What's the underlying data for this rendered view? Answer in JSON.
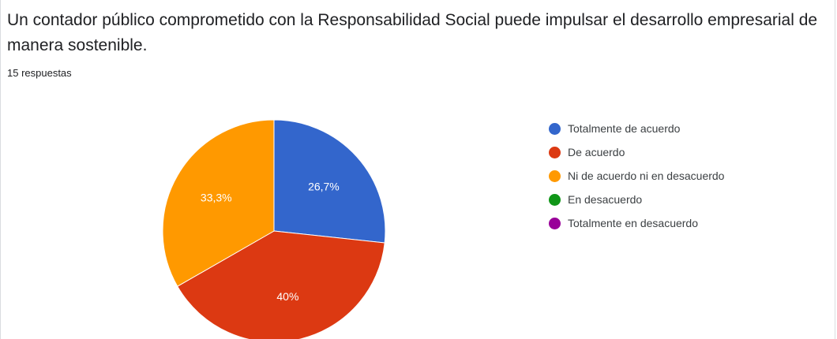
{
  "question": {
    "title": "Un contador público comprometido con la Responsabilidad Social puede impulsar el desarrollo empresarial de manera sostenible.",
    "response_count": "15 respuestas"
  },
  "chart_data": {
    "type": "pie",
    "categories": [
      "Totalmente de acuerdo",
      "De acuerdo",
      "Ni de acuerdo ni en desacuerdo",
      "En desacuerdo",
      "Totalmente en desacuerdo"
    ],
    "values": [
      26.7,
      40,
      33.3,
      0,
      0
    ],
    "value_labels": [
      "26,7%",
      "40%",
      "33,3%",
      "",
      ""
    ],
    "colors": [
      "#3366cc",
      "#dc3912",
      "#ff9900",
      "#109618",
      "#990099"
    ],
    "legend_position": "right"
  }
}
